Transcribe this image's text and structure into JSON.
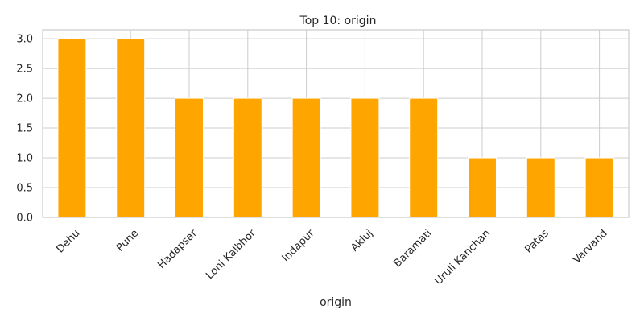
{
  "chart_data": {
    "type": "bar",
    "title": "Top 10: origin",
    "xlabel": "origin",
    "ylabel": "",
    "categories": [
      "Dehu",
      "Pune",
      "Hadapsar",
      "Loni Kalbhor",
      "Indapur",
      "Akluj",
      "Baramati",
      "Uruli Kanchan",
      "Patas",
      "Varvand"
    ],
    "values": [
      3,
      3,
      2,
      2,
      2,
      2,
      2,
      1,
      1,
      1
    ],
    "ylim": [
      0,
      3.15
    ],
    "yticks": [
      "0.0",
      "0.5",
      "1.0",
      "1.5",
      "2.0",
      "2.5",
      "3.0"
    ],
    "grid": true,
    "bar_color": "#FFA500"
  }
}
